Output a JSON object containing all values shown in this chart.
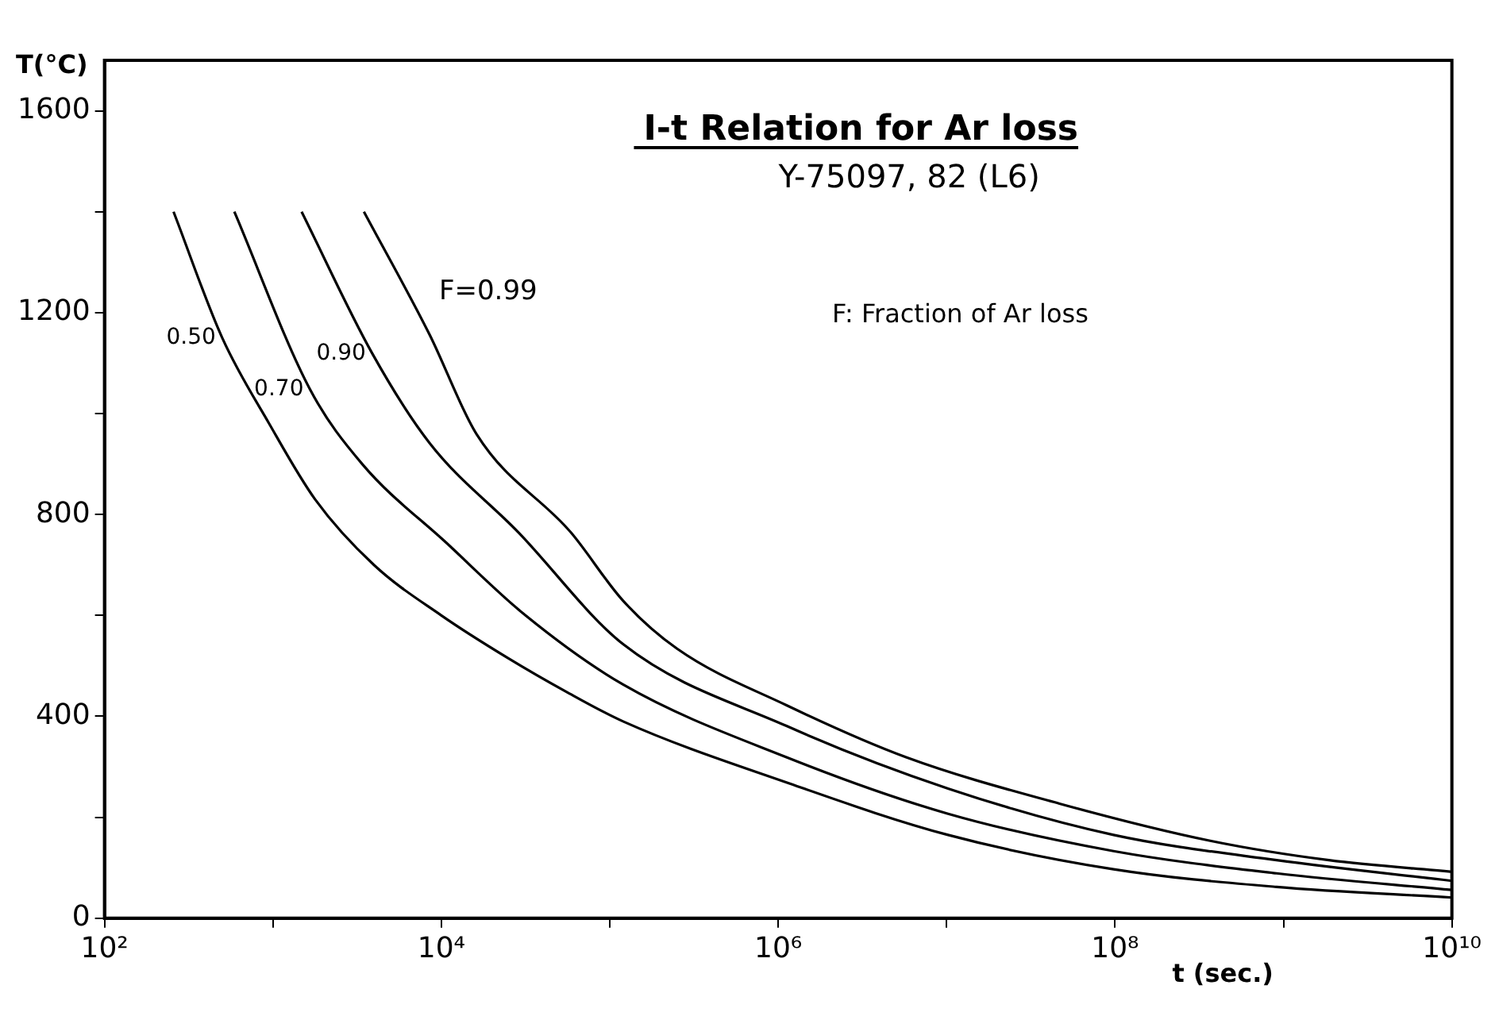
{
  "chart_data": {
    "type": "line",
    "title": "I-t Relation for Ar loss",
    "subtitle": "Y-75097, 82 (L6)",
    "xlabel": "t (sec.)",
    "ylabel": "T(°C)",
    "annotations": [
      "F: Fraction of Ar loss"
    ],
    "log": "x",
    "legend": false,
    "marker": "none",
    "line_style": "solid",
    "xlim": [
      100,
      10000000000.0
    ],
    "ylim": [
      0,
      1700
    ],
    "xticks": [
      {
        "value": 100,
        "label": "10²"
      },
      {
        "value": 1000,
        "label": null
      },
      {
        "value": 10000,
        "label": "10⁴"
      },
      {
        "value": 100000,
        "label": null
      },
      {
        "value": 1000000,
        "label": "10⁶"
      },
      {
        "value": 10000000,
        "label": null
      },
      {
        "value": 100000000,
        "label": "10⁸"
      },
      {
        "value": 1000000000,
        "label": null
      },
      {
        "value": 10000000000,
        "label": "10¹⁰"
      }
    ],
    "yticks": [
      0,
      {
        "value": 200,
        "label": null
      },
      400,
      {
        "value": 600,
        "label": null
      },
      800,
      {
        "value": 1000,
        "label": null
      },
      1200,
      {
        "value": 1400,
        "label": null
      },
      1600
    ],
    "series": [
      {
        "name": "0.50",
        "color": "#000000",
        "x": [
          257,
          500,
          950,
          1780,
          3980,
          10000,
          25000,
          55000,
          120000,
          1120000,
          10200000,
          98000000,
          910000000,
          10000000000
        ],
        "values": [
          1400,
          1150,
          980,
          830,
          700,
          600,
          515,
          449,
          390,
          269,
          165,
          97,
          62,
          41
        ]
      },
      {
        "name": "0.70",
        "color": "#000000",
        "x": [
          590,
          1660,
          3390,
          10700,
          31600,
          120000,
          1120000,
          10200000,
          98000000,
          910000000,
          10000000000
        ],
        "values": [
          1400,
          1048,
          900,
          744,
          600,
          463,
          319,
          207,
          133,
          89,
          56
        ]
      },
      {
        "name": "0.90",
        "color": "#000000",
        "x": [
          1480,
          3890,
          8500,
          28800,
          120000,
          1120000,
          10200000,
          98000000,
          910000000,
          10000000000
        ],
        "values": [
          1400,
          1119,
          942,
          764,
          543,
          381,
          257,
          165,
          115,
          74
        ]
      },
      {
        "name": "F=0.99",
        "color": "#000000",
        "x": [
          3470,
          8500,
          16200,
          58900,
          120000,
          251000,
          1120000,
          5750000,
          46800000,
          372000000,
          1860000000,
          10000000000
        ],
        "values": [
          1400,
          1157,
          959,
          764,
          629,
          534,
          422,
          319,
          227,
          153,
          115,
          92
        ]
      }
    ]
  }
}
